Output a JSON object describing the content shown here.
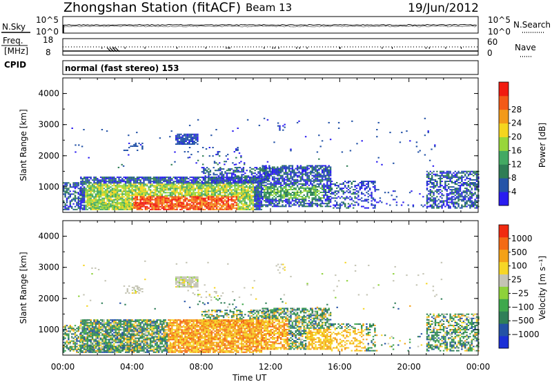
{
  "header": {
    "station": "Zhongshan Station (fitACF)",
    "beam": "Beam 13",
    "date": "19/Jun/2012"
  },
  "top_panels": {
    "nsky_label": "N.Sky",
    "nsky_ticks": [
      "10^5",
      "10^0"
    ],
    "nsearch_label": "N.Search",
    "nsearch_ticks": [
      "10^5",
      "10^0"
    ],
    "freq_label_1": "Freq.",
    "freq_label_2": "[MHz]",
    "freq_ticks": [
      "18",
      "8"
    ],
    "nave_label": "Nave",
    "nave_ticks": [
      "60",
      "0"
    ],
    "cpid_label": "CPID",
    "cpid_text": "normal (fast stereo) 153"
  },
  "chart_data": [
    {
      "type": "heatmap",
      "name": "power",
      "ylabel": "Slant Range [km]",
      "yticks": [
        "1000",
        "2000",
        "3000",
        "4000"
      ],
      "ylim": [
        180,
        4500
      ],
      "xticks": [
        "00:00",
        "04:00",
        "08:00",
        "12:00",
        "16:00",
        "20:00",
        "00:00"
      ],
      "xlim_hours": [
        0,
        24
      ],
      "colorbar_label": "Power [dB]",
      "colorbar_ticks": [
        "4",
        "8",
        "12",
        "16",
        "20",
        "24",
        "28"
      ],
      "colors": [
        "#2a1cf0",
        "#2453a7",
        "#2e7d55",
        "#43a963",
        "#98d63a",
        "#f5d51f",
        "#f39a1a",
        "#f35a17",
        "#f11b10"
      ]
    },
    {
      "type": "heatmap",
      "name": "velocity",
      "ylabel": "Slant Range [km]",
      "yticks": [
        "1000",
        "2000",
        "3000",
        "4000"
      ],
      "ylim": [
        180,
        4500
      ],
      "xticks": [
        "00:00",
        "04:00",
        "08:00",
        "12:00",
        "16:00",
        "20:00",
        "00:00"
      ],
      "xlabel": "Time UT",
      "xlim_hours": [
        0,
        24
      ],
      "colorbar_label": "Velocity [m s⁻¹]",
      "colorbar_ticks": [
        "1000",
        "500",
        "100",
        "25",
        "−25",
        "−100",
        "−500",
        "−1000"
      ],
      "colors": [
        "#1b2fd6",
        "#2452a5",
        "#2f7f58",
        "#3fa84c",
        "#8ed23a",
        "#c4c4b4",
        "#f6d626",
        "#f4a117",
        "#f36a14",
        "#f12a10"
      ]
    }
  ]
}
